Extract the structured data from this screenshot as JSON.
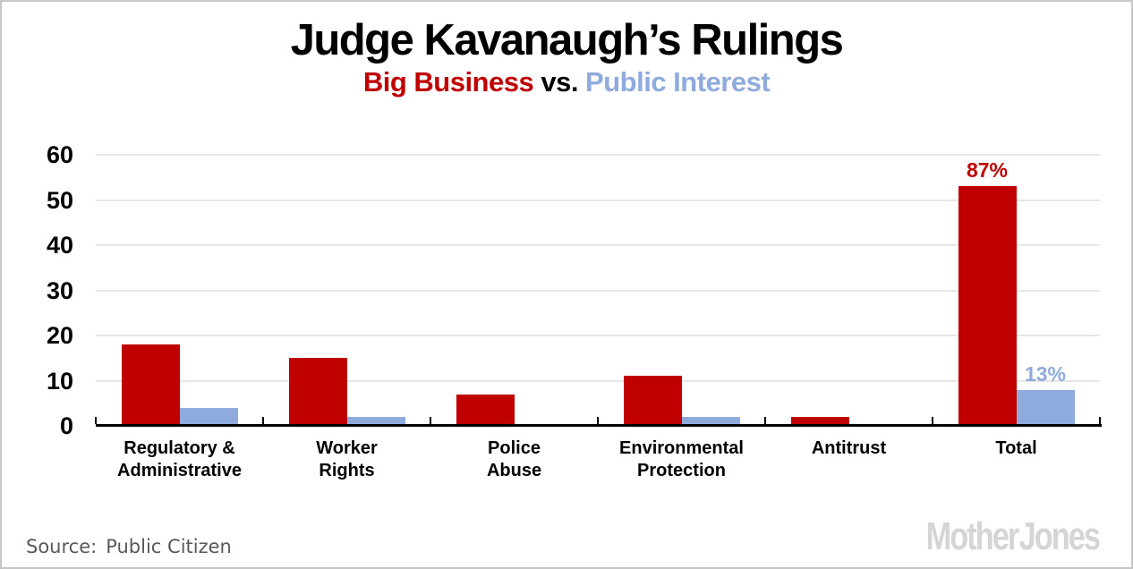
{
  "page": {
    "background": "#ffffff",
    "border_color": "#c6c6c6"
  },
  "header": {
    "title": "Judge Kavanaugh’s Rulings",
    "subtitle_parts": [
      {
        "text": "Big Business",
        "color": "#c00000"
      },
      {
        "text": " vs. ",
        "color": "#000000"
      },
      {
        "text": "Public Interest",
        "color": "#8faadc"
      }
    ]
  },
  "chart_data": {
    "type": "bar",
    "title": "Judge Kavanaugh’s Rulings",
    "subtitle": "Big Business vs. Public Interest",
    "categories": [
      "Regulatory & Administrative",
      "Worker Rights",
      "Police Abuse",
      "Environmental Protection",
      "Antitrust",
      "Total"
    ],
    "category_label_lines": [
      [
        "Regulatory &",
        "Administrative"
      ],
      [
        "Worker",
        "Rights"
      ],
      [
        "Police",
        "Abuse"
      ],
      [
        "Environmental",
        "Protection"
      ],
      [
        "Antitrust"
      ],
      [
        "Total"
      ]
    ],
    "series": [
      {
        "name": "Big Business",
        "color": "#c00000",
        "values": [
          18,
          15,
          7,
          11,
          2,
          53
        ]
      },
      {
        "name": "Public Interest",
        "color": "#8faadc",
        "values": [
          4,
          2,
          0,
          2,
          0,
          8
        ]
      }
    ],
    "annotations": [
      {
        "text": "87%",
        "color": "#c00000",
        "category_index": 5,
        "series_index": 0
      },
      {
        "text": "13%",
        "color": "#8faadc",
        "category_index": 5,
        "series_index": 1
      }
    ],
    "ylim": [
      0,
      60
    ],
    "yticks": [
      0,
      10,
      20,
      30,
      40,
      50,
      60
    ],
    "grid": true,
    "legend_position": "none",
    "gridline_color": "#e6e6e6",
    "axis_color": "#000000"
  },
  "footer": {
    "source_label": "Source:",
    "source_value": "Public Citizen",
    "logo_text": "Mother Jones"
  }
}
